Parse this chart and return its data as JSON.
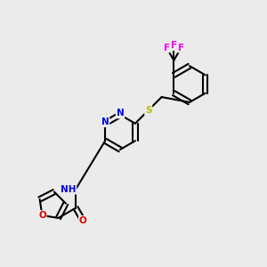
{
  "bg_color": "#ebebeb",
  "atom_colors": {
    "C": "#000000",
    "N": "#0000ee",
    "O": "#dd0000",
    "S": "#bbbb00",
    "F": "#ee00ee",
    "H": "#777777"
  },
  "figsize": [
    3.0,
    3.0
  ],
  "dpi": 100
}
